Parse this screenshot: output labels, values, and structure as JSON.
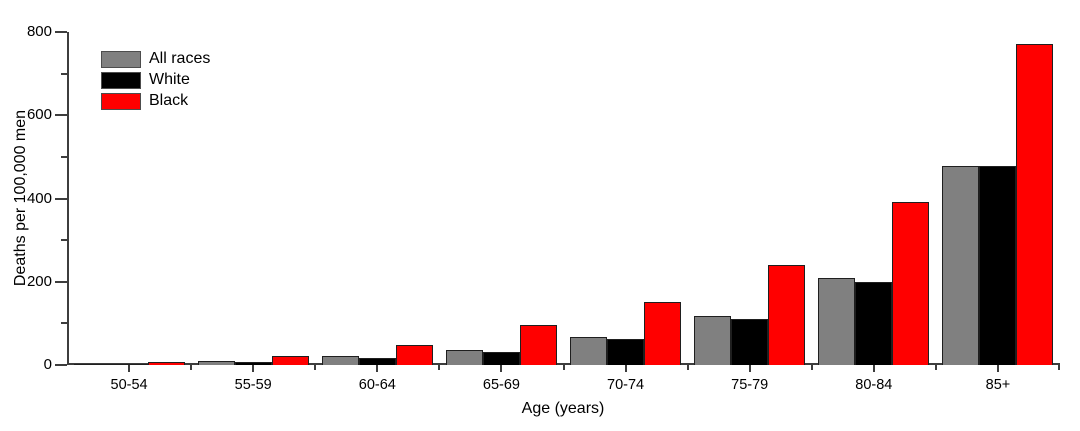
{
  "figure": {
    "background": "#ffffff",
    "axis_color": "#3d3d3d",
    "text_color": "#000000"
  },
  "chart_data": {
    "type": "bar",
    "title": "",
    "xlabel": "Age (years)",
    "ylabel": "Deaths per 100,000 men",
    "categories": [
      "50-54",
      "55-59",
      "60-64",
      "65-69",
      "70-74",
      "75-79",
      "80-84",
      "85+"
    ],
    "series": [
      {
        "name": "All races",
        "color": "#808080",
        "values": [
          3,
          9,
          21,
          37,
          68,
          117,
          209,
          478
        ]
      },
      {
        "name": "White",
        "color": "#000000",
        "values": [
          2,
          8,
          16,
          32,
          62,
          110,
          200,
          477
        ]
      },
      {
        "name": "Black",
        "color": "#ff0000",
        "values": [
          8,
          21,
          48,
          97,
          151,
          240,
          391,
          771
        ]
      }
    ],
    "ylim": [
      0,
      800
    ],
    "yticks": [
      0,
      200,
      400,
      600,
      800
    ],
    "ytick_labels": [
      "0",
      "200",
      "400",
      "600",
      "800"
    ],
    "y_minor_ticks": [
      100,
      300,
      500,
      700
    ],
    "grid": false,
    "legend_position": "top-left",
    "legend_items": [
      "All races",
      "White",
      "Black"
    ]
  }
}
